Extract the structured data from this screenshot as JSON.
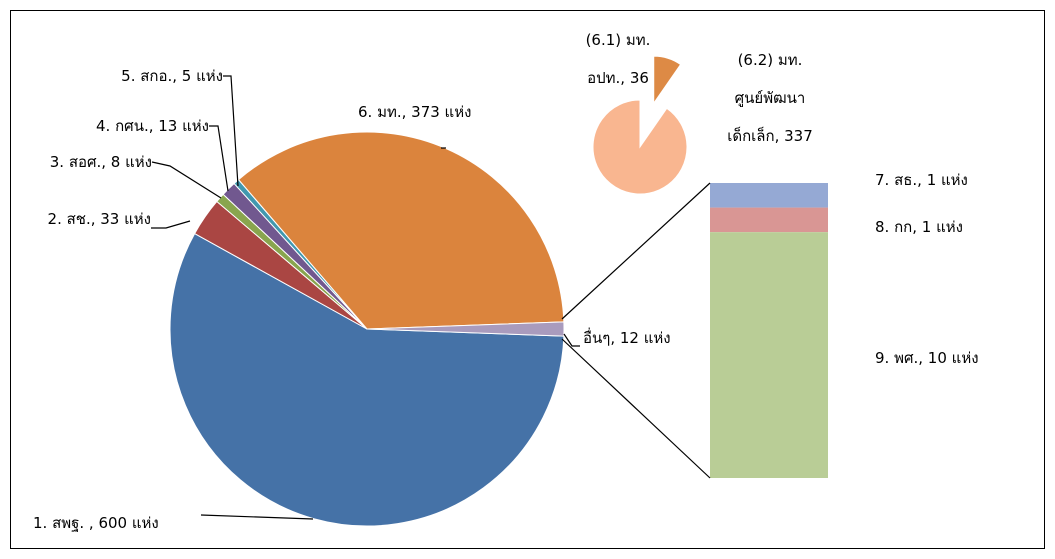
{
  "chart_data": {
    "type": "pie",
    "values": [
      600,
      33,
      8,
      13,
      5,
      373,
      12
    ],
    "value_labels": [
      "1. สพฐ. , 600 แห่ง",
      "2. สช., 33 แห่ง",
      "3. สอศ., 8 แห่ง",
      "4. กศน., 13 แห่ง",
      "5. สกอ., 5 แห่ง",
      "6. มท., 373 แห่ง",
      "อื่นๆ, 12 แห่ง"
    ],
    "colors": [
      "#4572a7",
      "#aa4643",
      "#89a54e",
      "#71588f",
      "#4198af",
      "#db843d",
      "#a99bbd"
    ],
    "breakdown": {
      "type": "bar",
      "values": [
        1,
        1,
        10
      ],
      "value_labels": [
        "7. สธ., 1 แห่ง",
        "8. กก, 1 แห่ง",
        "9. พศ., 10 แห่ง"
      ],
      "colors": [
        "#95a9d4",
        "#d99694",
        "#b9cd96"
      ]
    },
    "sub_pie": {
      "type": "pie",
      "values": [
        36,
        337
      ],
      "value_labels": [
        "(6.1) มท.\nอปท., 36",
        "(6.2) มท.\nศูนย์พัฒนา\nเด็กเล็ก, 337"
      ],
      "colors": [
        "#dd8a45",
        "#f9b690"
      ]
    }
  }
}
